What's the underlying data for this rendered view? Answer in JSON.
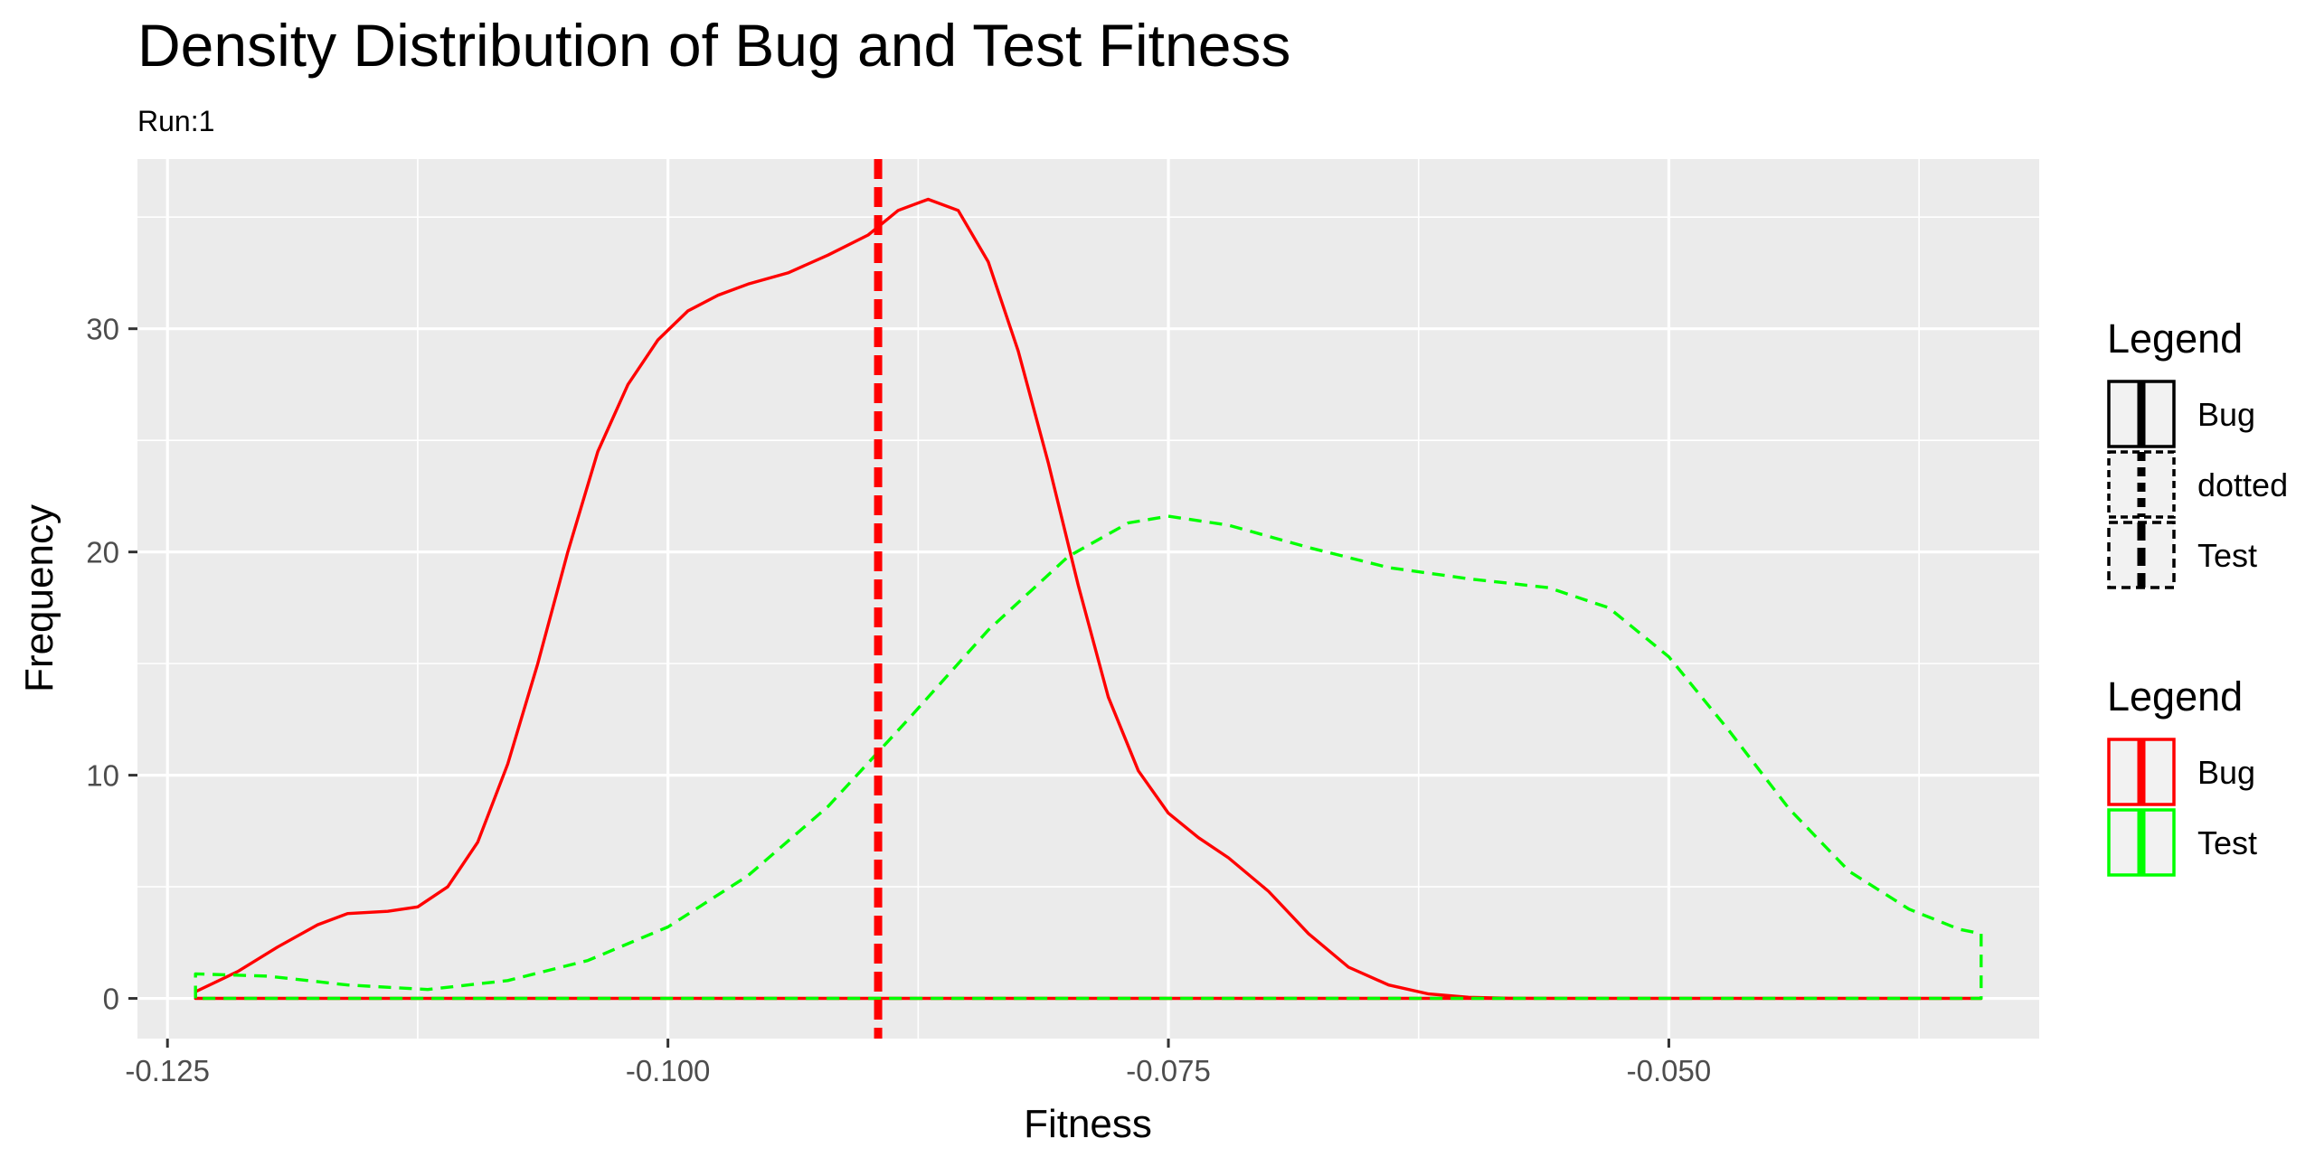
{
  "chart_data": {
    "type": "line",
    "title": "Density Distribution of Bug and Test Fitness",
    "subtitle": "Run:1",
    "xlabel": "Fitness",
    "ylabel": "Frequency",
    "xlim": [
      -0.1265,
      -0.0315
    ],
    "ylim": [
      -1.8,
      37.6
    ],
    "x_ticks": [
      -0.125,
      -0.1,
      -0.075,
      -0.05
    ],
    "x_tick_labels": [
      "-0.125",
      "-0.100",
      "-0.075",
      "-0.050"
    ],
    "x_minor_ticks": [
      -0.1125,
      -0.0875,
      -0.0625,
      -0.0375
    ],
    "y_ticks": [
      0,
      10,
      20,
      30
    ],
    "y_tick_labels": [
      "0",
      "10",
      "20",
      "30"
    ],
    "y_minor_ticks": [
      5,
      15,
      25,
      35
    ],
    "grid": true,
    "series": [
      {
        "name": "Bug",
        "color": "#ff0000",
        "linetype": "solid",
        "x": [
          -0.1236,
          -0.1215,
          -0.1195,
          -0.1175,
          -0.116,
          -0.114,
          -0.1125,
          -0.111,
          -0.1095,
          -0.108,
          -0.1065,
          -0.105,
          -0.1035,
          -0.102,
          -0.1005,
          -0.099,
          -0.0975,
          -0.096,
          -0.094,
          -0.092,
          -0.09,
          -0.0885,
          -0.087,
          -0.0855,
          -0.084,
          -0.0825,
          -0.081,
          -0.0795,
          -0.078,
          -0.0765,
          -0.075,
          -0.0735,
          -0.072,
          -0.07,
          -0.068,
          -0.066,
          -0.064,
          -0.062,
          -0.06,
          -0.058,
          -0.055,
          -0.05,
          -0.045,
          -0.04,
          -0.0344
        ],
        "y": [
          0.3,
          1.2,
          2.3,
          3.3,
          3.8,
          3.9,
          4.1,
          5.0,
          7.0,
          10.5,
          15.0,
          20.0,
          24.5,
          27.5,
          29.5,
          30.8,
          31.5,
          32.0,
          32.5,
          33.3,
          34.2,
          35.3,
          35.8,
          35.3,
          33.0,
          29.0,
          24.0,
          18.5,
          13.5,
          10.2,
          8.3,
          7.2,
          6.3,
          4.8,
          2.9,
          1.4,
          0.6,
          0.2,
          0.05,
          0.01,
          0.0,
          0.0,
          0.0,
          0.0,
          0.0
        ]
      },
      {
        "name": "Test",
        "color": "#00ff00",
        "linetype": "dashed",
        "x": [
          -0.1236,
          -0.12,
          -0.116,
          -0.112,
          -0.108,
          -0.104,
          -0.1,
          -0.096,
          -0.092,
          -0.088,
          -0.084,
          -0.08,
          -0.077,
          -0.075,
          -0.072,
          -0.068,
          -0.064,
          -0.06,
          -0.056,
          -0.053,
          -0.05,
          -0.047,
          -0.044,
          -0.041,
          -0.038,
          -0.0355,
          -0.0344
        ],
        "y": [
          1.1,
          1.0,
          0.6,
          0.4,
          0.8,
          1.7,
          3.2,
          5.5,
          8.6,
          12.5,
          16.5,
          19.8,
          21.3,
          21.6,
          21.2,
          20.2,
          19.3,
          18.8,
          18.4,
          17.5,
          15.3,
          12.0,
          8.5,
          5.7,
          4.0,
          3.1,
          2.9
        ]
      }
    ],
    "vline": {
      "x": -0.0895,
      "color": "#ff0000",
      "linetype": "dashed"
    },
    "legends": [
      {
        "title": "Legend",
        "placement": "right",
        "items": [
          {
            "label": "Bug",
            "linetype": "solid",
            "color": "#000000"
          },
          {
            "label": "dotted",
            "linetype": "dotted",
            "color": "#000000"
          },
          {
            "label": "Test",
            "linetype": "dashed",
            "color": "#000000"
          }
        ]
      },
      {
        "title": "Legend",
        "placement": "right",
        "items": [
          {
            "label": "Bug",
            "linetype": "solid",
            "color": "#ff0000"
          },
          {
            "label": "Test",
            "linetype": "solid",
            "color": "#00ff00"
          }
        ]
      }
    ],
    "colors": {
      "panel": "#ebebeb",
      "grid": "#ffffff",
      "bug": "#ff0000",
      "test": "#00ff00"
    }
  }
}
